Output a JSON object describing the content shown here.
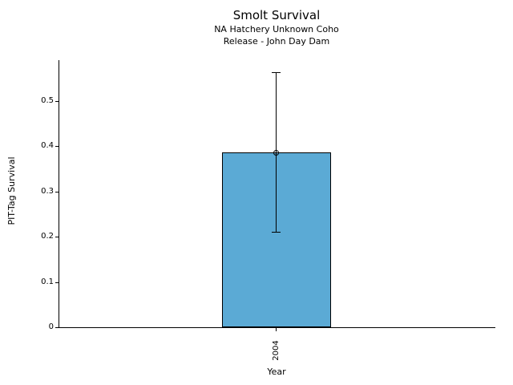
{
  "chart_data": {
    "type": "bar",
    "title": "Smolt Survival",
    "subtitle": [
      "NA Hatchery Unknown Coho",
      "Release - John Day Dam"
    ],
    "xlabel": "Year",
    "ylabel": "PIT-Tag Survival",
    "categories": [
      "2004"
    ],
    "values": [
      0.386
    ],
    "error_low": [
      0.21
    ],
    "error_high": [
      0.563
    ],
    "yticks": [
      0,
      0.1,
      0.2,
      0.3,
      0.4,
      0.5
    ],
    "ytick_labels": [
      "0",
      "0.1",
      "0.2",
      "0.3",
      "0.4",
      "0.5"
    ],
    "ylim": [
      0,
      0.59
    ],
    "grid": false,
    "legend": "none",
    "marker": "open-circle",
    "bar_color": "#5BAAD5",
    "edge_color": "#000000"
  }
}
